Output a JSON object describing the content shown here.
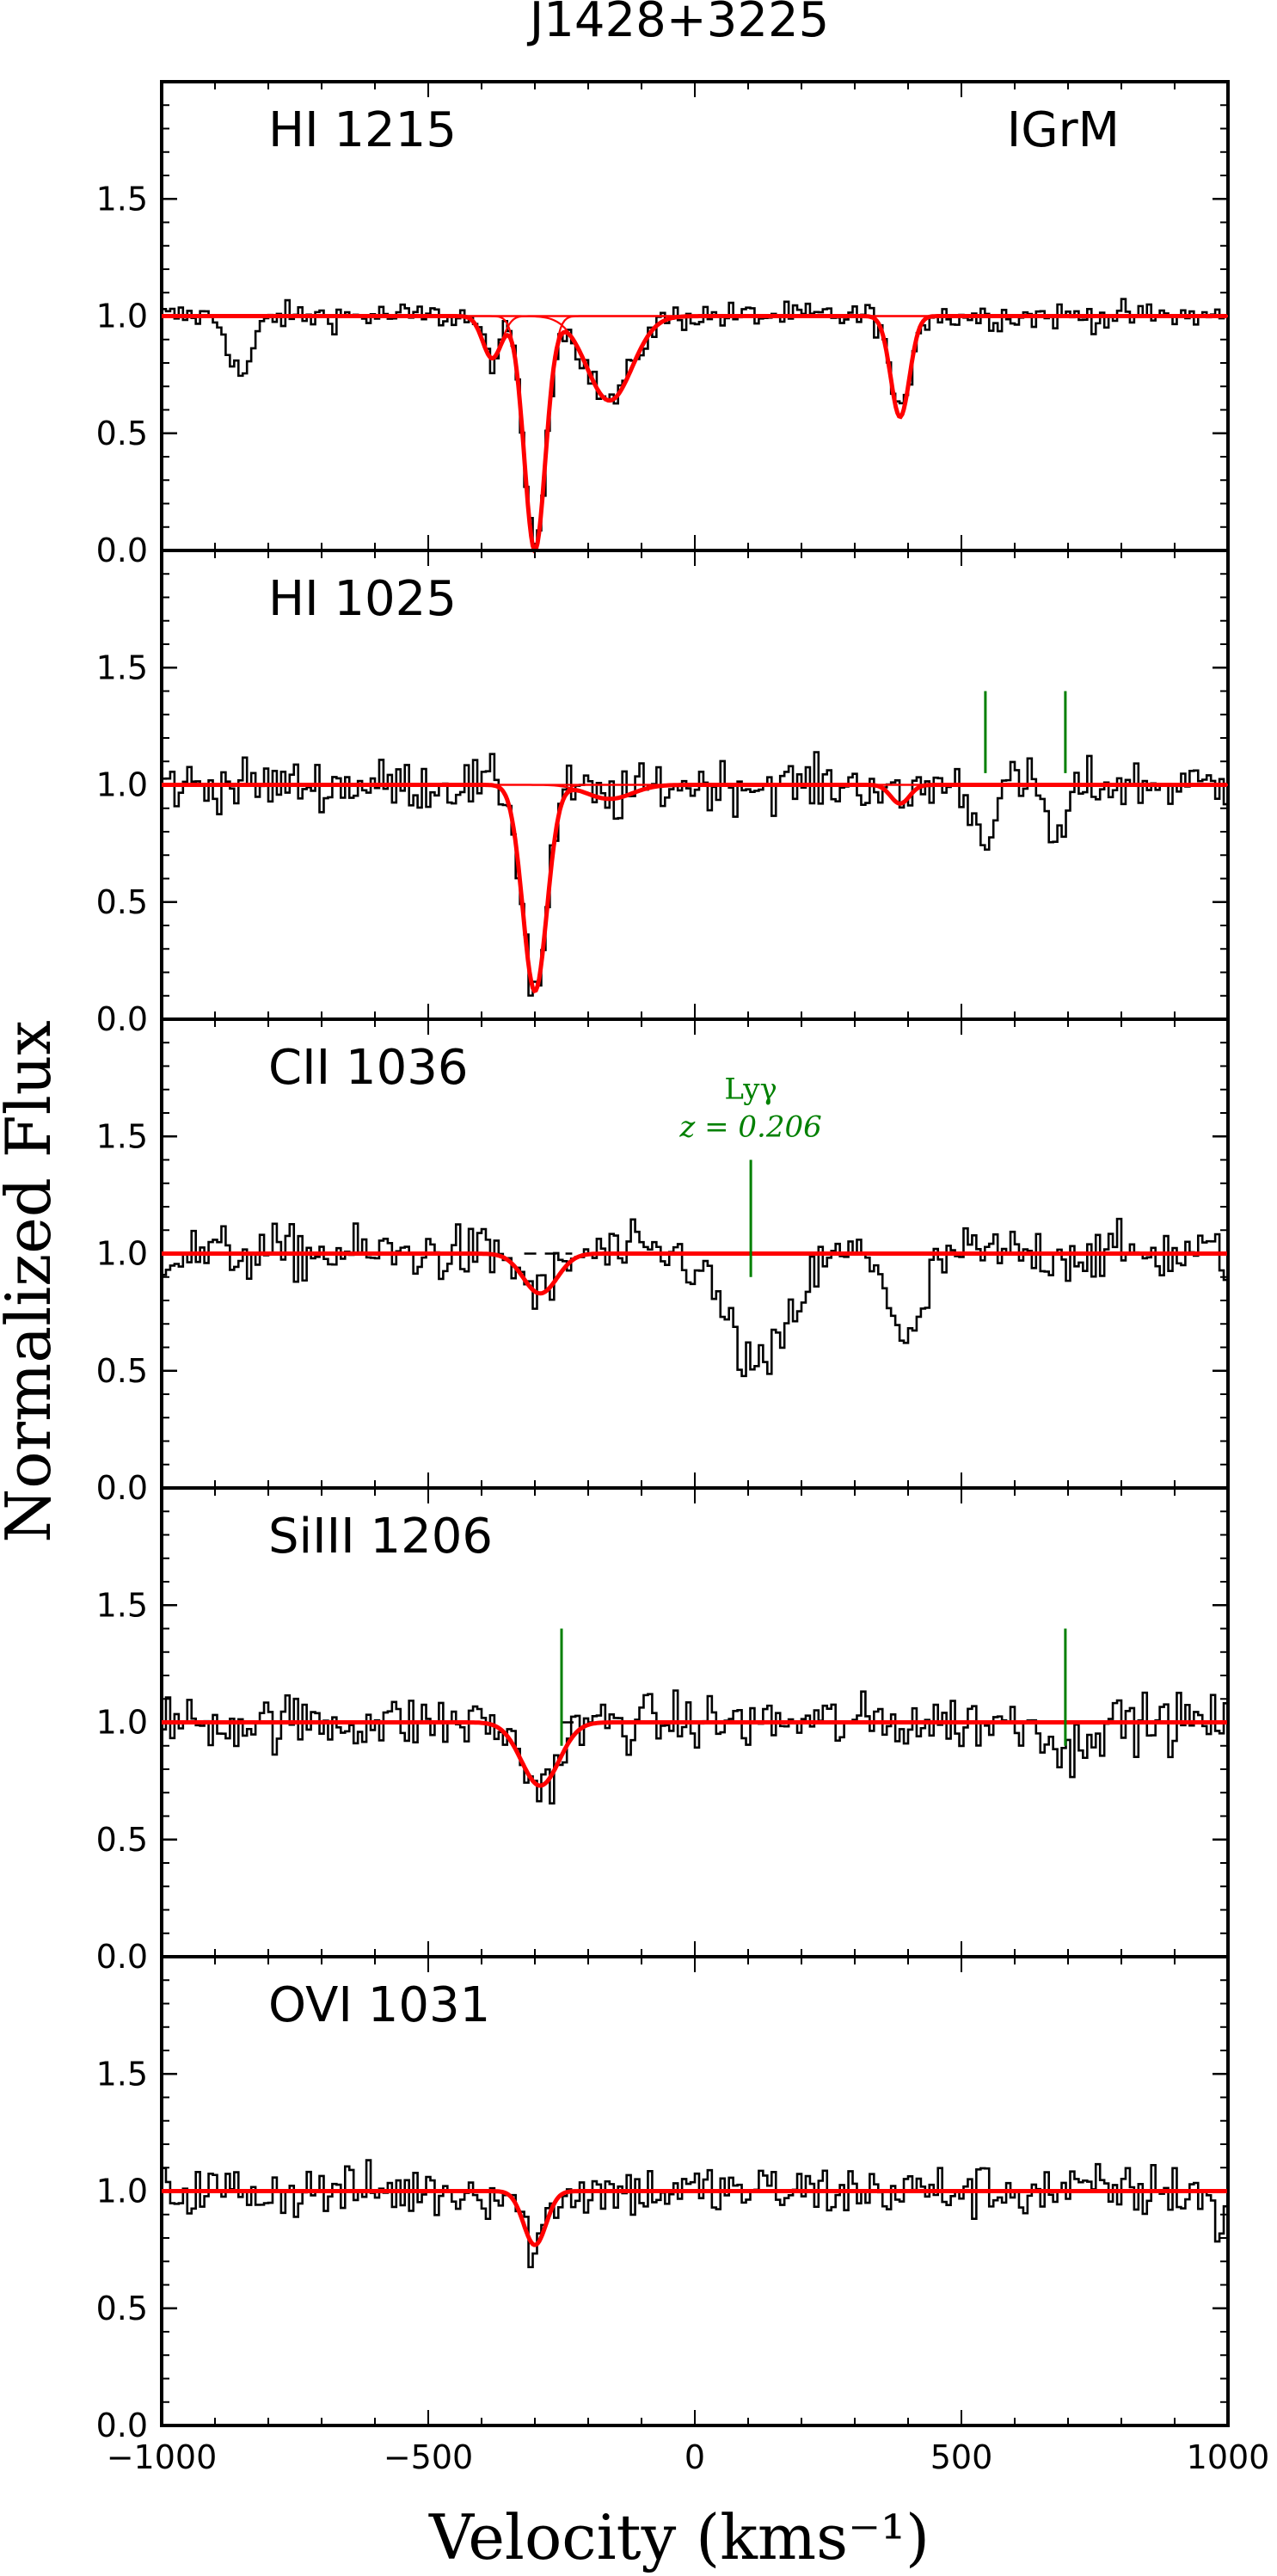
{
  "chart_data": {
    "type": "line",
    "title": "J1428+3225",
    "xlabel": "Velocity (kms⁻¹)",
    "ylabel": "Normalized Flux",
    "xlim": [
      -1000,
      1000
    ],
    "ylim": [
      0.0,
      2.0
    ],
    "x_ticks": [
      -1000,
      -500,
      0,
      500,
      1000
    ],
    "x_tick_labels": [
      "−1000",
      "−500",
      "0",
      "500",
      "1000"
    ],
    "y_ticks": [
      0.0,
      0.5,
      1.0,
      1.5
    ],
    "y_tick_labels": [
      "0.0",
      "0.5",
      "1.0",
      "1.5"
    ],
    "colors": {
      "data": "#000000",
      "fit": "#ff0000",
      "marker": "#008000"
    },
    "panels": [
      {
        "label": "HI 1215",
        "corner_label": "IGrM",
        "components": [
          {
            "center": -300,
            "depth": 1.0,
            "width": 28,
            "saturated": true
          },
          {
            "center": -160,
            "depth": 0.36,
            "width": 60
          },
          {
            "center": -380,
            "depth": 0.18,
            "width": 25
          },
          {
            "center": 385,
            "depth": 0.43,
            "width": 25
          }
        ],
        "features": [
          {
            "center": -850,
            "depth": 0.25,
            "width": 30
          }
        ],
        "noise": 0.03,
        "ticks": [],
        "dashed_continuum": []
      },
      {
        "label": "HI 1025",
        "corner_label": "",
        "components": [
          {
            "center": -300,
            "depth": 0.88,
            "width": 32
          },
          {
            "center": -160,
            "depth": 0.06,
            "width": 60
          },
          {
            "center": 385,
            "depth": 0.08,
            "width": 25
          }
        ],
        "features": [
          {
            "center": 540,
            "depth": 0.22,
            "width": 25
          },
          {
            "center": 680,
            "depth": 0.25,
            "width": 25
          }
        ],
        "noise": 0.055,
        "ticks": [
          {
            "v": 545,
            "ymin": 1.05,
            "ymax": 1.4
          },
          {
            "v": 695,
            "ymin": 1.05,
            "ymax": 1.4
          }
        ],
        "dashed_continuum": []
      },
      {
        "label": "CII 1036",
        "corner_label": "",
        "components": [
          {
            "center": -290,
            "depth": 0.17,
            "width": 45
          }
        ],
        "features": [
          {
            "center": 120,
            "depth": 0.5,
            "width": 80
          },
          {
            "center": 400,
            "depth": 0.4,
            "width": 40
          }
        ],
        "noise": 0.06,
        "ticks": [
          {
            "v": 105,
            "ymin": 0.9,
            "ymax": 1.4
          }
        ],
        "dashed_continuum": [
          {
            "v0": -320,
            "v1": -230
          }
        ],
        "annotation": {
          "line1": "Lyγ",
          "line2": "z = 0.206",
          "v": 105
        }
      },
      {
        "label": "SiIII 1206",
        "corner_label": "",
        "components": [
          {
            "center": -290,
            "depth": 0.27,
            "width": 50
          }
        ],
        "features": [
          {
            "center": 700,
            "depth": 0.15,
            "width": 30
          }
        ],
        "noise": 0.06,
        "ticks": [
          {
            "v": -250,
            "ymin": 0.9,
            "ymax": 1.4
          },
          {
            "v": 695,
            "ymin": 0.9,
            "ymax": 1.4
          }
        ],
        "dashed_continuum": [
          {
            "v0": -250,
            "v1": -220
          }
        ]
      },
      {
        "label": "OVI 1031",
        "corner_label": "",
        "components": [
          {
            "center": -300,
            "depth": 0.23,
            "width": 30
          }
        ],
        "features": [
          {
            "center": 985,
            "depth": 0.2,
            "width": 12
          }
        ],
        "noise": 0.06,
        "ticks": [],
        "dashed_continuum": []
      }
    ]
  }
}
